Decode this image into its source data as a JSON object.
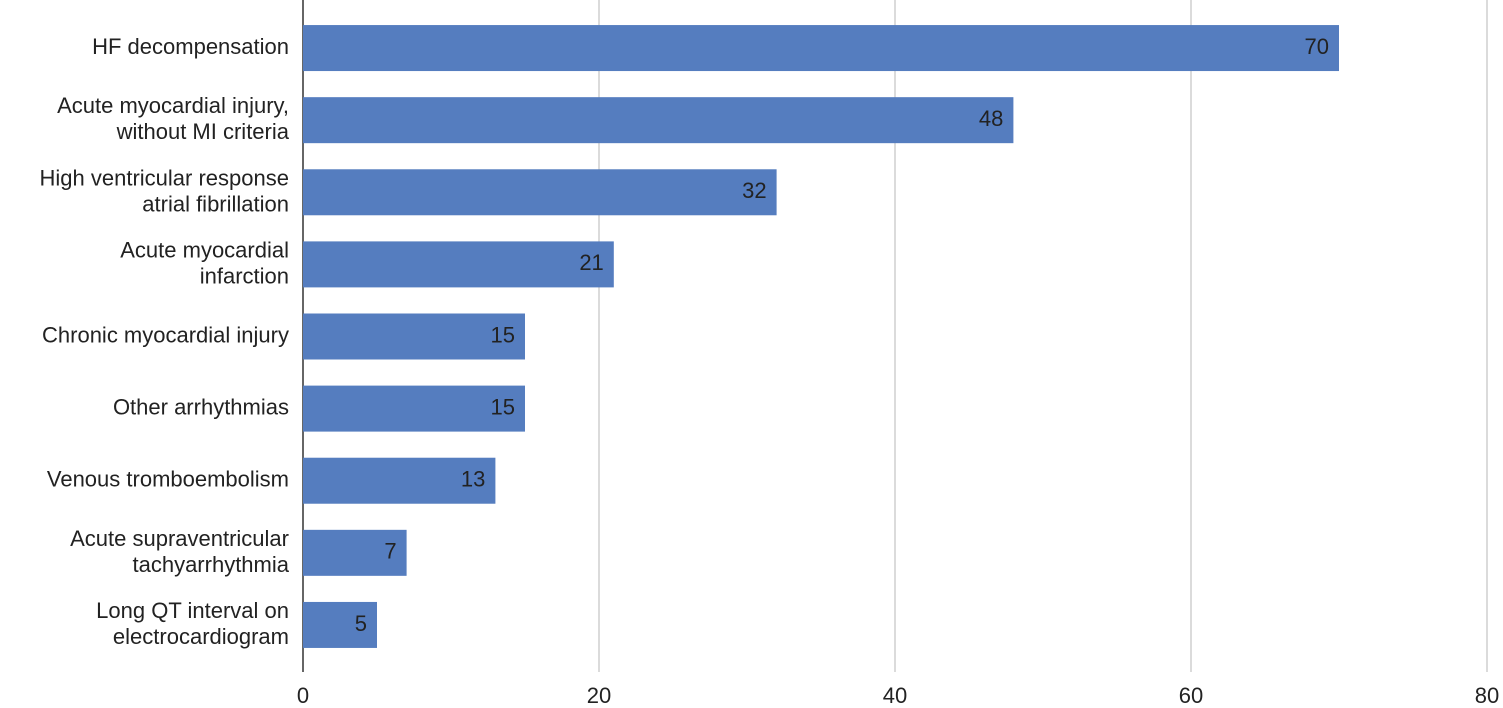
{
  "chart_data": {
    "type": "bar",
    "orientation": "horizontal",
    "categories": [
      "HF decompensation",
      "Acute myocardial injury,\nwithout MI criteria",
      "High ventricular response\natrial fibrillation",
      "Acute myocardial\ninfarction",
      "Chronic myocardial injury",
      "Other arrhythmias",
      "Venous tromboembolism",
      "Acute supraventricular\ntachyarrhythmia",
      "Long QT interval on\nelectrocardiogram"
    ],
    "values": [
      70,
      48,
      32,
      21,
      15,
      15,
      13,
      7,
      5
    ],
    "color": "#557dbf",
    "xlim": [
      0,
      80
    ],
    "xticks": [
      0,
      20,
      40,
      60,
      80
    ],
    "grid": true
  }
}
